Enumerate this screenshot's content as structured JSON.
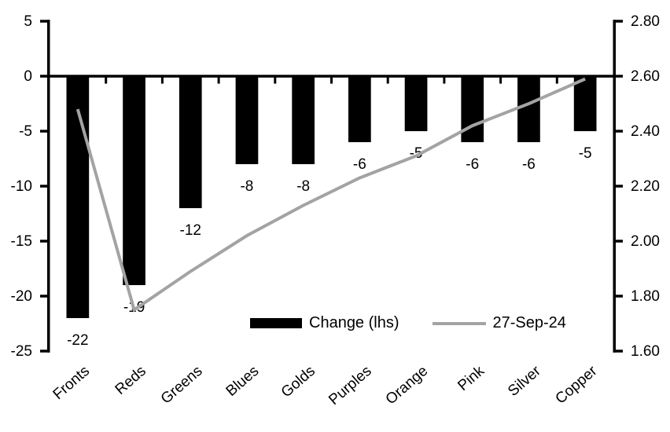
{
  "chart_data": {
    "type": "bar",
    "subtype": "bar-with-line-overlay-dual-axis",
    "categories": [
      "Fronts",
      "Reds",
      "Greens",
      "Blues",
      "Golds",
      "Purples",
      "Orange",
      "Pink",
      "Silver",
      "Copper"
    ],
    "series": [
      {
        "name": "Change (lhs)",
        "type": "bar",
        "axis": "left",
        "color": "#000000",
        "values": [
          -22,
          -19,
          -12,
          -8,
          -8,
          -6,
          -5,
          -6,
          -6,
          -5
        ],
        "data_labels": [
          "-22",
          "-19",
          "-12",
          "-8",
          "-8",
          "-6",
          "-5",
          "-6",
          "-6",
          "-5"
        ]
      },
      {
        "name": "27-Sep-24",
        "type": "line",
        "axis": "right",
        "color": "#a3a3a3",
        "values": [
          2.48,
          1.75,
          1.89,
          2.02,
          2.13,
          2.23,
          2.31,
          2.42,
          2.5,
          2.59
        ]
      }
    ],
    "left_axis": {
      "min": -25,
      "max": 5,
      "step": 5,
      "tick_labels": [
        "5",
        "0",
        "-5",
        "-10",
        "-15",
        "-20",
        "-25"
      ]
    },
    "right_axis": {
      "min": 1.6,
      "max": 2.8,
      "step": 0.2,
      "tick_labels": [
        "2.80",
        "2.60",
        "2.40",
        "2.20",
        "2.00",
        "1.80",
        "1.60"
      ]
    },
    "legend": {
      "position": "inside-bottom",
      "items": [
        "Change (lhs)",
        "27-Sep-24"
      ]
    },
    "grid": false,
    "title": "",
    "xlabel": "",
    "ylabel": "",
    "colors": {
      "axis": "#000000",
      "text": "#000000",
      "background": "#ffffff"
    }
  }
}
